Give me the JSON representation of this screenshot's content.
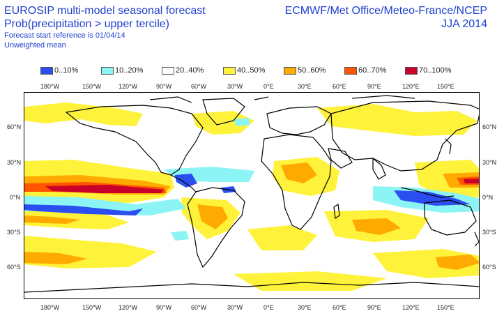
{
  "header": {
    "title": "EUROSIP multi-model seasonal forecast",
    "subtitle": "Prob(precipitation > upper tercile)",
    "start_ref": "Forecast start reference is 01/04/14",
    "mean_type": "Unweighted mean",
    "centres": "ECMWF/Met Office/Meteo-France/NCEP",
    "season": "JJA 2014"
  },
  "legend": [
    {
      "label": "0..10%",
      "color": "#2b4ef0"
    },
    {
      "label": "10..20%",
      "color": "#8cf4f4"
    },
    {
      "label": "20..40%",
      "color": "#ffffff"
    },
    {
      "label": "40..50%",
      "color": "#fff23a"
    },
    {
      "label": "50..60%",
      "color": "#ffaa00"
    },
    {
      "label": "60..70%",
      "color": "#ff5500"
    },
    {
      "label": "70..100%",
      "color": "#c8002a"
    }
  ],
  "axes": {
    "lon_labels": [
      "180°W",
      "150°W",
      "120°W",
      "90°W",
      "60°W",
      "30°W",
      "0°E",
      "30°E",
      "60°E",
      "90°E",
      "120°E",
      "150°E"
    ],
    "lat_labels": [
      "60°N",
      "30°N",
      "0°N",
      "30°S",
      "60°S"
    ]
  }
}
